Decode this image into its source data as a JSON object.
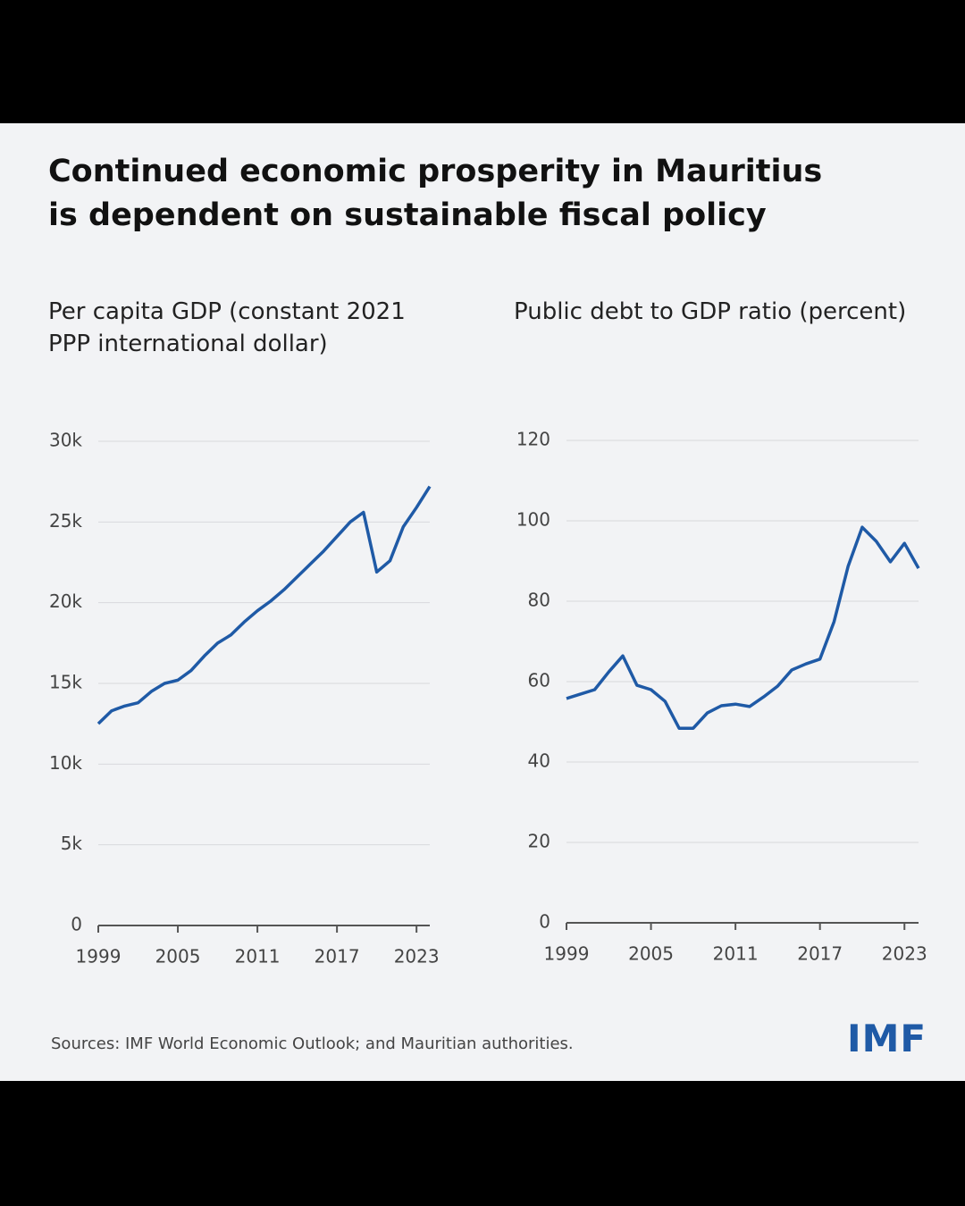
{
  "title": "Continued economic prosperity in Mauritius is dependent on sustainable fiscal policy",
  "source": "Sources: IMF World Economic Outlook; and Mauritian authorities.",
  "logo": "IMF",
  "chart_data": [
    {
      "type": "line",
      "subtitle": "Per capita GDP (constant 2021 PPP international dollar)",
      "x": [
        1999,
        2000,
        2001,
        2002,
        2003,
        2004,
        2005,
        2006,
        2007,
        2008,
        2009,
        2010,
        2011,
        2012,
        2013,
        2014,
        2015,
        2016,
        2017,
        2018,
        2019,
        2020,
        2021,
        2022,
        2023,
        2024
      ],
      "values": [
        12500,
        13300,
        13600,
        13800,
        14500,
        15000,
        15200,
        15800,
        16700,
        17500,
        18000,
        18800,
        19500,
        20100,
        20800,
        21600,
        22400,
        23200,
        24100,
        25000,
        25600,
        21900,
        22600,
        24700,
        25900,
        27200
      ],
      "color": "#1f5aa6",
      "xlim": [
        1999,
        2024
      ],
      "xticks": [
        1999,
        2005,
        2011,
        2017,
        2023
      ],
      "ylim": [
        0,
        30000
      ],
      "yticks": [
        0,
        {
          "value": 5000,
          "label": "5k"
        },
        {
          "value": 10000,
          "label": "10k"
        },
        {
          "value": 15000,
          "label": "15k"
        },
        {
          "value": 20000,
          "label": "20k"
        },
        {
          "value": 25000,
          "label": "25k"
        },
        {
          "value": 30000,
          "label": "30k"
        }
      ],
      "grid": true
    },
    {
      "type": "line",
      "subtitle": "Public debt to GDP ratio (percent)",
      "x": [
        1999,
        2000,
        2001,
        2002,
        2003,
        2004,
        2005,
        2006,
        2007,
        2008,
        2009,
        2010,
        2011,
        2012,
        2013,
        2014,
        2015,
        2016,
        2017,
        2018,
        2019,
        2020,
        2021,
        2022,
        2023,
        2024
      ],
      "values": [
        55.8,
        56.9,
        58,
        62.4,
        66.4,
        59.1,
        58,
        55.1,
        48.4,
        48.4,
        52.2,
        54,
        54.4,
        53.8,
        56.2,
        58.9,
        62.9,
        64.4,
        65.6,
        74.9,
        88.7,
        98.4,
        94.9,
        89.8,
        94.4,
        88.2
      ],
      "color": "#1f5aa6",
      "xlim": [
        1999,
        2024
      ],
      "xticks": [
        1999,
        2005,
        2011,
        2017,
        2023
      ],
      "ylim": [
        0,
        120
      ],
      "yticks": [
        0,
        20,
        40,
        60,
        80,
        100,
        120
      ],
      "grid": true
    }
  ]
}
